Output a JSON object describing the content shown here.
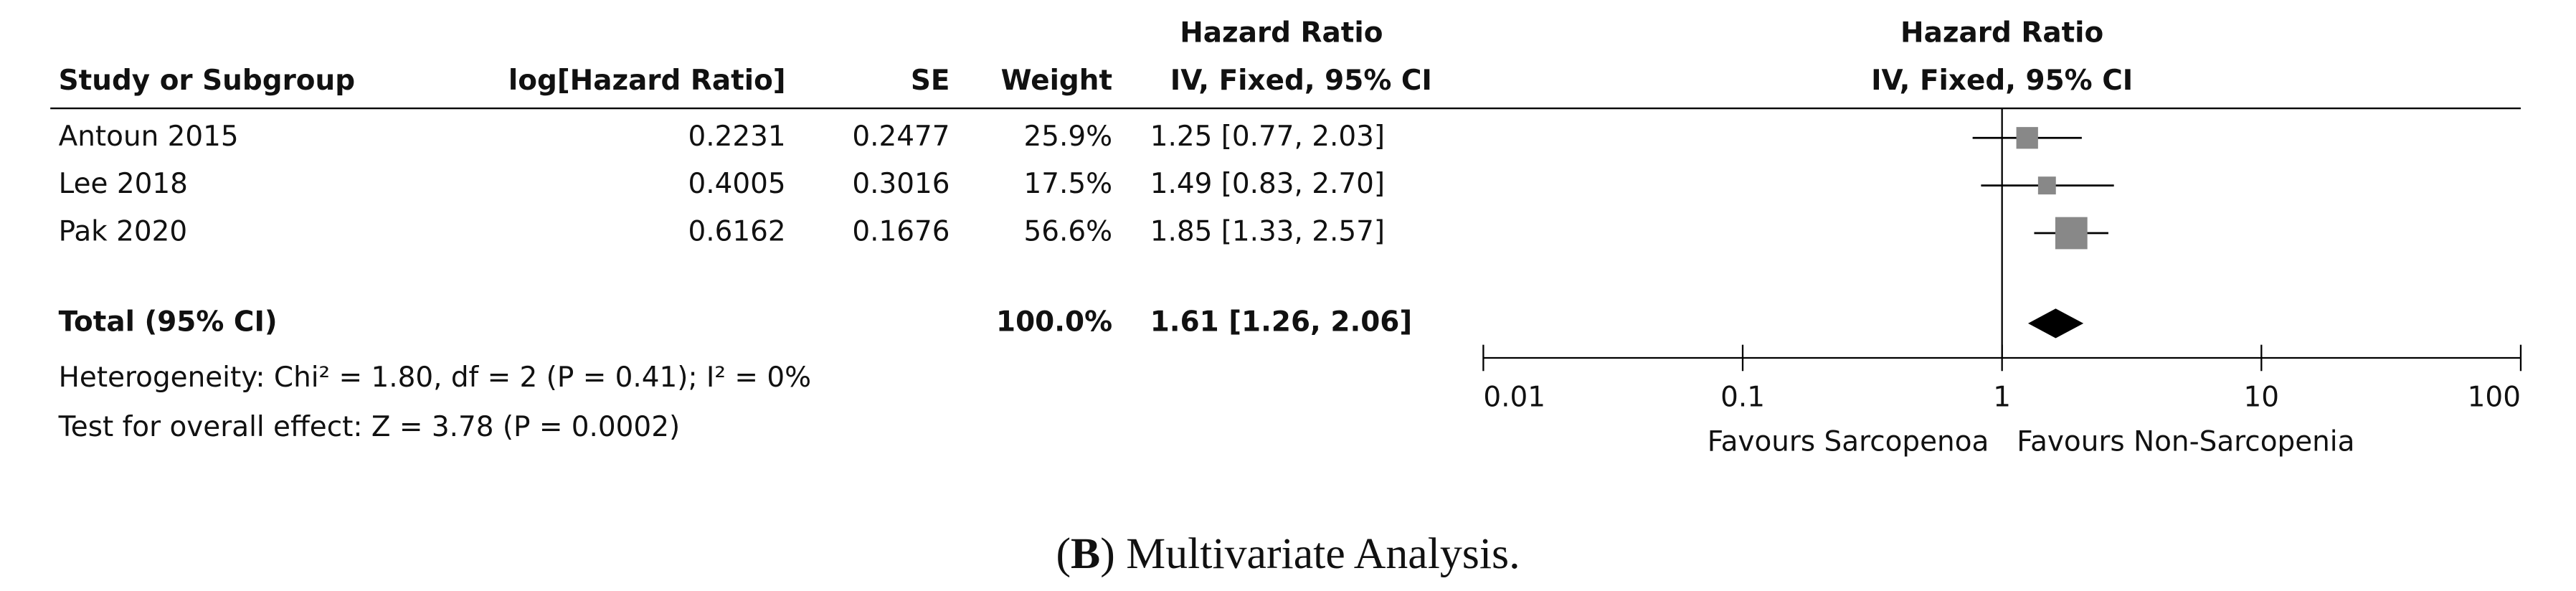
{
  "chart_data": {
    "type": "forest",
    "headers": {
      "study": "Study or Subgroup",
      "loghr": "log[Hazard Ratio]",
      "se": "SE",
      "weight": "Weight",
      "effect_title": "Hazard Ratio",
      "effect_method": "IV, Fixed, 95% CI"
    },
    "plot_headers": {
      "title": "Hazard Ratio",
      "method": "IV, Fixed, 95% CI"
    },
    "studies": [
      "Antoun 2015",
      "Lee 2018",
      "Pak 2020"
    ],
    "log_hr": [
      0.2231,
      0.4005,
      0.6162
    ],
    "se": [
      0.2477,
      0.3016,
      0.1676
    ],
    "weights": [
      25.9,
      17.5,
      56.6
    ],
    "weight_labels": [
      "25.9%",
      "17.5%",
      "56.6%"
    ],
    "hazard_ratios": [
      1.25,
      1.49,
      1.85
    ],
    "ci_low": [
      0.77,
      0.83,
      1.33
    ],
    "ci_high": [
      2.03,
      2.7,
      2.57
    ],
    "ci_labels": [
      "1.25 [0.77, 2.03]",
      "1.49 [0.83, 2.70]",
      "1.85 [1.33, 2.57]"
    ],
    "total": {
      "label": "Total (95% CI)",
      "weight": 100.0,
      "weight_label": "100.0%",
      "hazard_ratio": 1.61,
      "ci_low": 1.26,
      "ci_high": 2.06,
      "ci_label": "1.61 [1.26, 2.06]"
    },
    "heterogeneity": "Heterogeneity: Chi² = 1.80, df = 2 (P = 0.41); I² = 0%",
    "overall_effect": "Test for overall effect: Z = 3.78 (P = 0.0002)",
    "xscale": "log",
    "xlim": [
      0.01,
      100
    ],
    "xticks": [
      0.01,
      0.1,
      1,
      10,
      100
    ],
    "reference": 1,
    "favours_left": "Favours Sarcopenoa",
    "favours_right": "Favours Non-Sarcopenia",
    "marker_color": "#888888",
    "diamond_color": "#000000",
    "caption": [
      "(",
      "B",
      ") Multivariate Analysis."
    ]
  }
}
